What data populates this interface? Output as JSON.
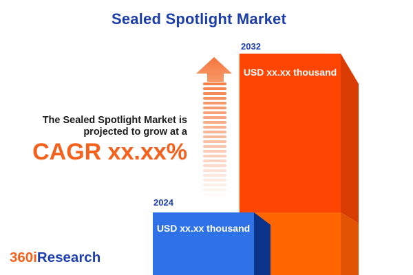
{
  "title": "Sealed Spotlight Market",
  "description": {
    "line1": "The Sealed Spotlight Market is",
    "line2": "projected to grow at a",
    "cagr": "CAGR xx.xx%"
  },
  "chart_data": {
    "type": "bar",
    "title": "Sealed Spotlight Market",
    "categories": [
      "2024",
      "2032"
    ],
    "values_masked": [
      "USD xx.xx thousand",
      "USD xx.xx thousand"
    ],
    "unit": "USD thousand",
    "annotation": "CAGR xx.xx%",
    "series": [
      {
        "name": "2024",
        "value_label": "USD xx.xx thousand",
        "face_color": "#2F72E8",
        "side_color": "#0A3389"
      },
      {
        "name": "2032",
        "value_label": "USD xx.xx thousand",
        "face_color_top": "#FF4502",
        "face_color_bottom": "#FF6602",
        "side_color_dark": "#D83C00",
        "side_color_light": "#E25304"
      }
    ],
    "legend": "none",
    "grid": false,
    "note": "relative bar heights only; numeric values masked as xx.xx in source graphic"
  },
  "arrow": {
    "name": "growth-arrow",
    "color": "#F5814B",
    "dash_count": 24,
    "fade_step": 0.042
  },
  "logo": {
    "prefix": "360i",
    "suffix": "Research"
  },
  "colors": {
    "title_blue": "#1C3EA8",
    "body_text": "#1A1A1A",
    "cagr_orange": "#F4611D",
    "bar_2032_face": "#FF4502",
    "bar_2032_face_lower": "#FF6602",
    "bar_2032_side": "#D83C00",
    "bar_2024_face": "#2F72E8",
    "bar_2024_side": "#0A3389",
    "value_label_text": "#FFFFFF",
    "logo_orange": "#F4611D",
    "logo_blue": "#1D3FAF"
  }
}
